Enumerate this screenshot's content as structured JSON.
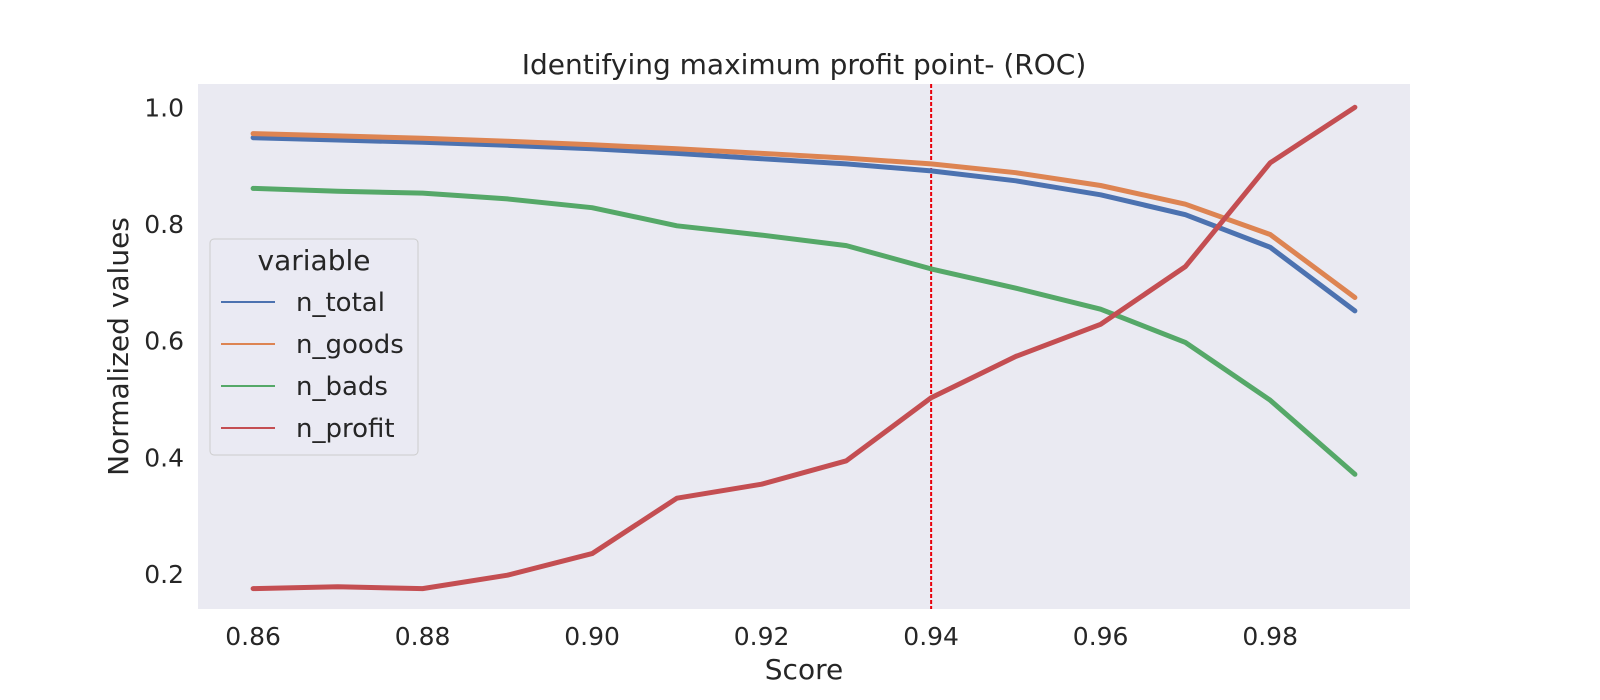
{
  "chart_data": {
    "type": "line",
    "title": "Identifying maximum profit point- (ROC)",
    "xlabel": "Score",
    "ylabel": "Normalized values",
    "x": [
      0.86,
      0.87,
      0.88,
      0.89,
      0.9,
      0.91,
      0.92,
      0.93,
      0.94,
      0.95,
      0.96,
      0.97,
      0.98,
      0.99
    ],
    "xlim": [
      0.8535,
      0.9965
    ],
    "ylim": [
      0.14,
      1.04
    ],
    "xticks": [
      0.86,
      0.88,
      0.9,
      0.92,
      0.94,
      0.96,
      0.98
    ],
    "xtick_labels": [
      "0.86",
      "0.88",
      "0.90",
      "0.92",
      "0.94",
      "0.96",
      "0.98"
    ],
    "yticks": [
      0.2,
      0.4,
      0.6,
      0.8,
      1.0
    ],
    "ytick_labels": [
      "0.2",
      "0.4",
      "0.6",
      "0.8",
      "1.0"
    ],
    "grid": false,
    "vline": {
      "x": 0.94,
      "color": "#e8000b",
      "style": "dotted"
    },
    "legend": {
      "title": "variable",
      "position": "center-left"
    },
    "series": [
      {
        "name": "n_total",
        "color": "#4c72b0",
        "values": [
          0.948,
          0.944,
          0.94,
          0.935,
          0.929,
          0.921,
          0.912,
          0.903,
          0.891,
          0.874,
          0.85,
          0.816,
          0.76,
          0.651
        ]
      },
      {
        "name": "n_goods",
        "color": "#dd8452",
        "values": [
          0.955,
          0.951,
          0.947,
          0.942,
          0.936,
          0.929,
          0.921,
          0.913,
          0.903,
          0.888,
          0.866,
          0.834,
          0.782,
          0.674
        ]
      },
      {
        "name": "n_bads",
        "color": "#55a868",
        "values": [
          0.861,
          0.856,
          0.853,
          0.843,
          0.828,
          0.797,
          0.781,
          0.763,
          0.723,
          0.69,
          0.654,
          0.597,
          0.498,
          0.371
        ]
      },
      {
        "name": "n_profit",
        "color": "#c44e52",
        "values": [
          0.175,
          0.178,
          0.175,
          0.198,
          0.235,
          0.33,
          0.354,
          0.394,
          0.502,
          0.573,
          0.628,
          0.727,
          0.905,
          1.0
        ]
      }
    ]
  }
}
